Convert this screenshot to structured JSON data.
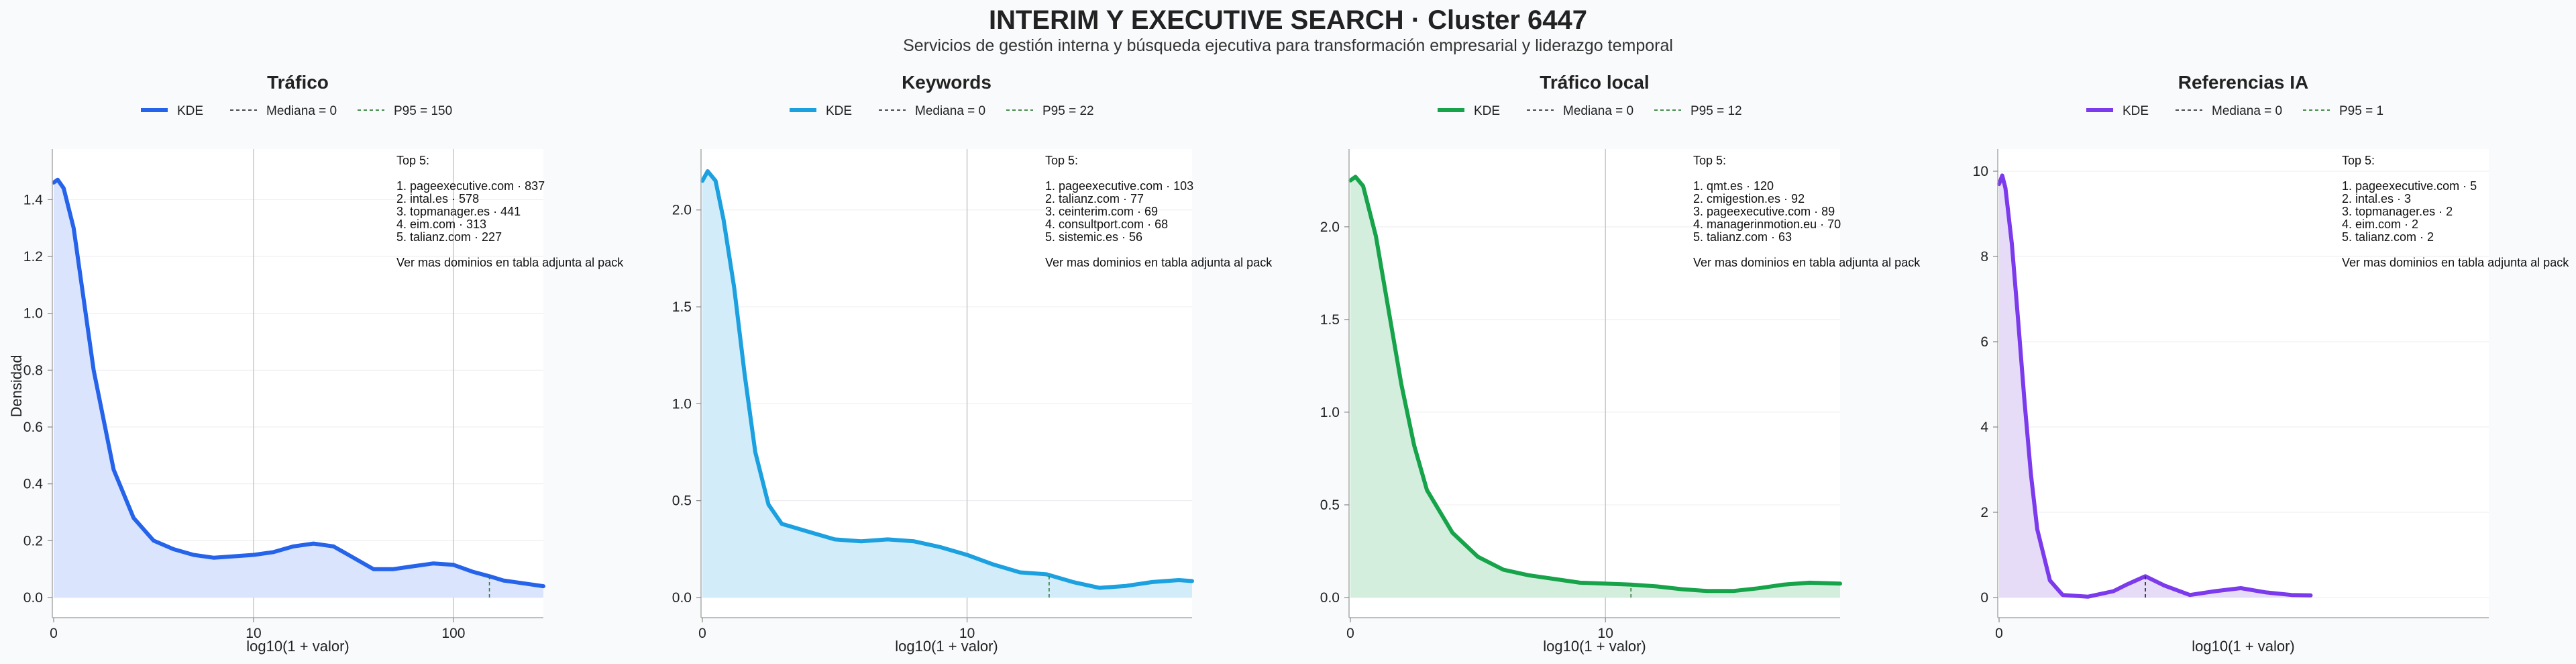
{
  "title": "INTERIM Y EXECUTIVE SEARCH · Cluster 6447",
  "subtitle": "Servicios de gestión interna y búsqueda ejecutiva para transformación empresarial y liderazgo temporal",
  "chart_data": [
    {
      "type": "line",
      "title": "Tráfico",
      "xlabel": "log10(1 + valor)",
      "ylabel": "Densidad",
      "x_scale": "log",
      "xlim": [
        0,
        2.45
      ],
      "ylim": [
        0,
        1.5
      ],
      "x_ticks": [
        {
          "v": 0,
          "label": "0"
        },
        {
          "v": 1,
          "label": "10"
        },
        {
          "v": 2,
          "label": "100"
        }
      ],
      "y_ticks": [
        {
          "v": 0,
          "label": "0.0"
        },
        {
          "v": 0.2,
          "label": "0.2"
        },
        {
          "v": 0.4,
          "label": "0.4"
        },
        {
          "v": 0.6,
          "label": "0.6"
        },
        {
          "v": 0.8,
          "label": "0.8"
        },
        {
          "v": 1.0,
          "label": "1.0"
        },
        {
          "v": 1.2,
          "label": "1.2"
        },
        {
          "v": 1.4,
          "label": "1.4"
        }
      ],
      "grid": true,
      "color": "#2563eb",
      "fill": "#dbe4fd",
      "legend": [
        "KDE",
        "Mediana = 0",
        "P95 = 150"
      ],
      "median": 0,
      "p95": 2.18,
      "series": [
        {
          "name": "KDE",
          "x": [
            0,
            0.02,
            0.05,
            0.1,
            0.15,
            0.2,
            0.3,
            0.4,
            0.5,
            0.6,
            0.7,
            0.8,
            1.0,
            1.1,
            1.2,
            1.3,
            1.4,
            1.5,
            1.6,
            1.7,
            1.8,
            1.9,
            2.0,
            2.1,
            2.18,
            2.25,
            2.35,
            2.45
          ],
          "y": [
            1.46,
            1.47,
            1.44,
            1.3,
            1.05,
            0.8,
            0.45,
            0.28,
            0.2,
            0.17,
            0.15,
            0.14,
            0.15,
            0.16,
            0.18,
            0.19,
            0.18,
            0.14,
            0.1,
            0.1,
            0.11,
            0.12,
            0.115,
            0.09,
            0.075,
            0.06,
            0.05,
            0.04
          ]
        }
      ],
      "notes": [
        "Top 5:",
        "",
        "1. pageexecutive.com · 837",
        "2. intal.es · 578",
        "3. topmanager.es · 441",
        "4. eim.com · 313",
        "5. talianz.com · 227",
        "",
        "Ver mas dominios en tabla adjunta al pack"
      ]
    },
    {
      "type": "line",
      "title": "Keywords",
      "xlabel": "log10(1 + valor)",
      "ylabel": "",
      "x_scale": "log",
      "xlim": [
        0,
        1.85
      ],
      "ylim": [
        0,
        2.2
      ],
      "x_ticks": [
        {
          "v": 0,
          "label": "0"
        },
        {
          "v": 1,
          "label": "10"
        }
      ],
      "y_ticks": [
        {
          "v": 0,
          "label": "0.0"
        },
        {
          "v": 0.5,
          "label": "0.5"
        },
        {
          "v": 1.0,
          "label": "1.0"
        },
        {
          "v": 1.5,
          "label": "1.5"
        },
        {
          "v": 2.0,
          "label": "2.0"
        }
      ],
      "grid": true,
      "color": "#1ba0e0",
      "fill": "#d2ecfa",
      "legend": [
        "KDE",
        "Mediana = 0",
        "P95 = 22"
      ],
      "median": 0,
      "p95": 1.31,
      "series": [
        {
          "name": "KDE",
          "x": [
            0,
            0.02,
            0.05,
            0.08,
            0.12,
            0.16,
            0.2,
            0.25,
            0.3,
            0.4,
            0.5,
            0.6,
            0.7,
            0.8,
            0.9,
            1.0,
            1.1,
            1.2,
            1.3,
            1.4,
            1.5,
            1.6,
            1.7,
            1.8,
            1.85
          ],
          "y": [
            2.15,
            2.2,
            2.15,
            1.95,
            1.6,
            1.15,
            0.75,
            0.48,
            0.38,
            0.34,
            0.3,
            0.29,
            0.3,
            0.29,
            0.26,
            0.22,
            0.17,
            0.13,
            0.12,
            0.08,
            0.05,
            0.06,
            0.08,
            0.09,
            0.085
          ]
        }
      ],
      "notes": [
        "Top 5:",
        "",
        "1. pageexecutive.com · 103",
        "2. talianz.com · 77",
        "3. ceinterim.com · 69",
        "4. consultport.com · 68",
        "5. sistemic.es · 56",
        "",
        "Ver mas dominios en tabla adjunta al pack"
      ]
    },
    {
      "type": "line",
      "title": "Tráfico local",
      "xlabel": "log10(1 + valor)",
      "ylabel": "",
      "x_scale": "log",
      "xlim": [
        0,
        1.92
      ],
      "ylim": [
        0,
        2.3
      ],
      "x_ticks": [
        {
          "v": 0,
          "label": "0"
        },
        {
          "v": 1,
          "label": "10"
        }
      ],
      "y_ticks": [
        {
          "v": 0,
          "label": "0.0"
        },
        {
          "v": 0.5,
          "label": "0.5"
        },
        {
          "v": 1.0,
          "label": "1.0"
        },
        {
          "v": 1.5,
          "label": "1.5"
        },
        {
          "v": 2.0,
          "label": "2.0"
        }
      ],
      "grid": true,
      "color": "#16a34a",
      "fill": "#d3eedd",
      "legend": [
        "KDE",
        "Mediana = 0",
        "P95 = 12"
      ],
      "median": 0,
      "p95": 1.1,
      "series": [
        {
          "name": "KDE",
          "x": [
            0,
            0.02,
            0.05,
            0.1,
            0.15,
            0.2,
            0.25,
            0.3,
            0.4,
            0.5,
            0.6,
            0.7,
            0.8,
            0.9,
            1.0,
            1.1,
            1.2,
            1.3,
            1.4,
            1.5,
            1.6,
            1.7,
            1.8,
            1.92
          ],
          "y": [
            2.25,
            2.27,
            2.22,
            1.95,
            1.55,
            1.15,
            0.82,
            0.58,
            0.35,
            0.22,
            0.15,
            0.12,
            0.1,
            0.08,
            0.075,
            0.07,
            0.06,
            0.045,
            0.035,
            0.035,
            0.05,
            0.07,
            0.08,
            0.075
          ]
        }
      ],
      "notes": [
        "Top 5:",
        "",
        "1. qmt.es · 120",
        "2. cmigestion.es · 92",
        "3. pageexecutive.com · 89",
        "4. managerinmotion.eu · 70",
        "5. talianz.com · 63",
        "",
        "Ver mas dominios en tabla adjunta al pack"
      ]
    },
    {
      "type": "line",
      "title": "Referencias IA",
      "xlabel": "log10(1 + valor)",
      "ylabel": "",
      "x_scale": "log",
      "xlim": [
        0,
        0.77
      ],
      "ylim": [
        0,
        10
      ],
      "x_ticks": [
        {
          "v": 0,
          "label": "0"
        }
      ],
      "y_ticks": [
        {
          "v": 0,
          "label": "0"
        },
        {
          "v": 2,
          "label": "2"
        },
        {
          "v": 4,
          "label": "4"
        },
        {
          "v": 6,
          "label": "6"
        },
        {
          "v": 8,
          "label": "8"
        },
        {
          "v": 10,
          "label": "10"
        }
      ],
      "grid": true,
      "color": "#7c3aed",
      "fill": "#e6dcf8",
      "legend": [
        "KDE",
        "Mediana = 0",
        "P95 = 1"
      ],
      "median": 0,
      "p95": 0.23,
      "series": [
        {
          "name": "KDE",
          "x": [
            0,
            0.005,
            0.01,
            0.02,
            0.03,
            0.04,
            0.05,
            0.06,
            0.08,
            0.1,
            0.14,
            0.18,
            0.2,
            0.23,
            0.26,
            0.3,
            0.34,
            0.38,
            0.42,
            0.46,
            0.49
          ],
          "y": [
            9.7,
            9.9,
            9.6,
            8.3,
            6.5,
            4.6,
            2.9,
            1.6,
            0.4,
            0.06,
            0.02,
            0.15,
            0.3,
            0.5,
            0.28,
            0.06,
            0.15,
            0.22,
            0.12,
            0.06,
            0.05
          ]
        }
      ],
      "notes": [
        "Top 5:",
        "",
        "1. pageexecutive.com · 5",
        "2. intal.es · 3",
        "3. topmanager.es · 2",
        "4. eim.com · 2",
        "5. talianz.com · 2",
        "",
        "Ver mas dominios en tabla adjunta al pack"
      ]
    }
  ]
}
